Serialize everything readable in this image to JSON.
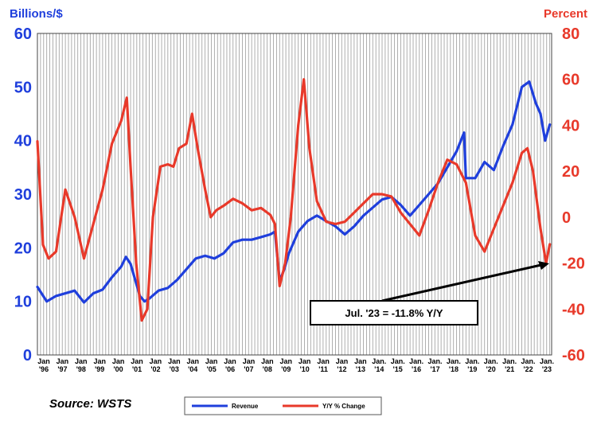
{
  "chart_data": {
    "type": "line",
    "title": "",
    "ylabel_left": "Billions/$",
    "ylabel_right": "Percent",
    "ylim_left": [
      0,
      60
    ],
    "ylim_right": [
      -60,
      80
    ],
    "yticks_left": [
      "0",
      "10",
      "20",
      "30",
      "40",
      "50",
      "60"
    ],
    "yticks_right": [
      "-60",
      "-40",
      "-20",
      "0",
      "20",
      "40",
      "60",
      "80"
    ],
    "x_tick_labels": [
      [
        "Jan",
        "'96"
      ],
      [
        "Jan",
        "'97"
      ],
      [
        "Jan",
        "'98"
      ],
      [
        "Jan",
        "'99"
      ],
      [
        "Jan",
        "'00"
      ],
      [
        "Jan",
        "'01"
      ],
      [
        "Jan",
        "'02"
      ],
      [
        "Jan",
        "'03"
      ],
      [
        "Jan",
        "'04"
      ],
      [
        "Jan",
        "'05"
      ],
      [
        "Jan",
        "'06"
      ],
      [
        "Jan",
        "'07"
      ],
      [
        "Jan",
        "'08"
      ],
      [
        "Jan",
        "'09"
      ],
      [
        "Jan",
        "'10"
      ],
      [
        "Jan",
        "'11"
      ],
      [
        "Jan",
        "'12"
      ],
      [
        "Jan",
        "'13"
      ],
      [
        "Jan.",
        "'14"
      ],
      [
        "Jan.",
        "'15"
      ],
      [
        "Jan.",
        "'16"
      ],
      [
        "Jan.",
        "'17"
      ],
      [
        "Jan.",
        "'18"
      ],
      [
        "Jan.",
        "'19"
      ],
      [
        "Jan.",
        "'20"
      ],
      [
        "Jan.",
        "'21"
      ],
      [
        "Jan.",
        "'22"
      ],
      [
        "Jan.",
        "'23"
      ]
    ],
    "grid": "vertical",
    "series": [
      {
        "name": "Revenue",
        "axis": "left",
        "color": "#1f3fdc",
        "x": [
          1996.0,
          1996.5,
          1997.0,
          1997.5,
          1998.0,
          1998.5,
          1999.0,
          1999.5,
          2000.0,
          2000.5,
          2000.75,
          2001.0,
          2001.5,
          2001.75,
          2002.0,
          2002.5,
          2003.0,
          2003.5,
          2004.0,
          2004.5,
          2005.0,
          2005.5,
          2006.0,
          2006.5,
          2007.0,
          2007.5,
          2008.0,
          2008.5,
          2008.75,
          2009.0,
          2009.25,
          2009.5,
          2010.0,
          2010.5,
          2011.0,
          2011.5,
          2012.0,
          2012.5,
          2013.0,
          2013.5,
          2014.0,
          2014.5,
          2015.0,
          2015.5,
          2016.0,
          2016.5,
          2017.0,
          2017.5,
          2018.0,
          2018.5,
          2018.9,
          2019.0,
          2019.5,
          2020.0,
          2020.5,
          2021.0,
          2021.5,
          2022.0,
          2022.4,
          2022.75,
          2023.0,
          2023.25,
          2023.5
        ],
        "values": [
          12.7,
          10,
          11,
          11.5,
          12,
          9.8,
          11.5,
          12.2,
          14.5,
          16.5,
          18.3,
          17,
          11,
          10,
          10.5,
          12,
          12.5,
          14,
          16,
          18,
          18.5,
          18,
          19,
          21,
          21.5,
          21.5,
          22,
          22.5,
          23,
          13.8,
          16,
          19,
          23,
          25,
          26,
          25,
          24,
          22.5,
          24,
          26,
          27.5,
          29,
          29.5,
          28,
          26,
          28,
          30,
          32,
          35,
          38,
          41.5,
          33,
          33,
          36,
          34.5,
          39,
          43,
          50,
          51,
          47,
          45,
          40,
          43
        ]
      },
      {
        "name": "Y/Y % Change",
        "axis": "right",
        "color": "#e8392a",
        "x": [
          1996.0,
          1996.3,
          1996.6,
          1997.0,
          1997.5,
          1998.0,
          1998.5,
          1999.0,
          1999.5,
          2000.0,
          2000.5,
          2000.8,
          2001.0,
          2001.3,
          2001.6,
          2001.9,
          2002.2,
          2002.6,
          2003.0,
          2003.3,
          2003.6,
          2004.0,
          2004.3,
          2004.6,
          2005.0,
          2005.3,
          2005.6,
          2006.0,
          2006.5,
          2007.0,
          2007.5,
          2008.0,
          2008.5,
          2008.75,
          2009.0,
          2009.3,
          2009.6,
          2010.0,
          2010.3,
          2010.6,
          2011.0,
          2011.5,
          2012.0,
          2012.5,
          2013.0,
          2013.5,
          2014.0,
          2014.5,
          2015.0,
          2015.5,
          2016.0,
          2016.5,
          2017.0,
          2017.5,
          2018.0,
          2018.5,
          2019.0,
          2019.5,
          2020.0,
          2020.5,
          2021.0,
          2021.5,
          2022.0,
          2022.3,
          2022.6,
          2023.0,
          2023.3,
          2023.5
        ],
        "values": [
          33,
          -12,
          -18,
          -15,
          12,
          0,
          -18,
          -3,
          12,
          32,
          42,
          52,
          22,
          -20,
          -45,
          -40,
          0,
          22,
          23,
          22,
          30,
          32,
          45,
          30,
          12,
          0,
          3,
          5,
          8,
          6,
          3,
          4,
          1,
          -3,
          -30,
          -20,
          0,
          40,
          60,
          30,
          7,
          -2,
          -3,
          -2,
          2,
          6,
          10,
          10,
          9,
          2,
          -3,
          -8,
          3,
          15,
          25,
          23,
          15,
          -8,
          -15,
          -5,
          5,
          15,
          28,
          30,
          20,
          -5,
          -20,
          -11.8
        ]
      }
    ],
    "annotation": "Jul. '23 = -11.8% Y/Y",
    "source": "Source: WSTS",
    "legend": [
      {
        "name": "Revenue",
        "color": "#1f3fdc"
      },
      {
        "name": "Y/Y % Change",
        "color": "#e8392a"
      }
    ],
    "legend_position": "bottom-center"
  }
}
